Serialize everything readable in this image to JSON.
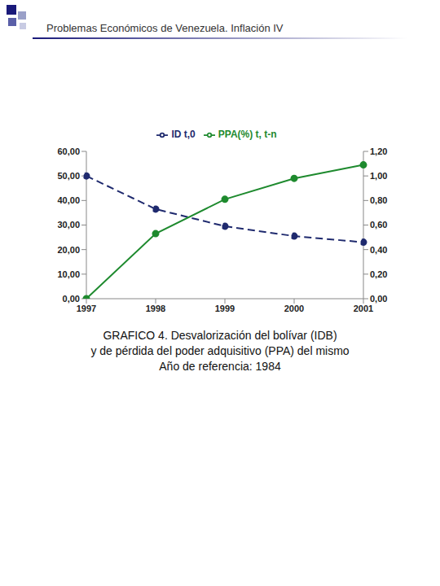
{
  "header": "Problemas Económicos de Venezuela. Inflación IV",
  "chart_data": {
    "type": "line",
    "caption": [
      "GRAFICO 4. Desvalorización del bolívar (IDB)",
      "y de pérdida del poder adquisitivo (PPA) del mismo",
      "Año de referencia: 1984"
    ],
    "categories": [
      "1997",
      "1998",
      "1999",
      "2000",
      "2001"
    ],
    "series": [
      {
        "name": "ID t,0",
        "color": "#1f2a6e",
        "marker": "circle",
        "line_style": "dashed",
        "values": [
          50,
          36.5,
          29.5,
          25.5,
          23
        ]
      },
      {
        "name": "PPA(%) t, t-n",
        "color": "#1e8a2e",
        "marker": "circle",
        "line_style": "solid",
        "axis": "y2",
        "values": [
          0,
          0.53,
          0.81,
          0.98,
          1.09
        ]
      }
    ],
    "ylim": [
      0,
      60
    ],
    "yticks": [
      {
        "value": 0,
        "label": "0,00"
      },
      {
        "value": 10,
        "label": "10,00"
      },
      {
        "value": 20,
        "label": "20,00"
      },
      {
        "value": 30,
        "label": "30,00"
      },
      {
        "value": 40,
        "label": "40,00"
      },
      {
        "value": 50,
        "label": "50,00"
      },
      {
        "value": 60,
        "label": "60,00"
      }
    ],
    "y2lim": [
      0,
      1.2
    ],
    "y2ticks": [
      {
        "value": 0,
        "label": "0,00"
      },
      {
        "value": 0.2,
        "label": "0,20"
      },
      {
        "value": 0.4,
        "label": "0,40"
      },
      {
        "value": 0.6,
        "label": "0,60"
      },
      {
        "value": 0.8,
        "label": "0,80"
      },
      {
        "value": 1,
        "label": "1,00"
      },
      {
        "value": 1.2,
        "label": "1,20"
      }
    ],
    "grid": false,
    "legend": "top"
  }
}
